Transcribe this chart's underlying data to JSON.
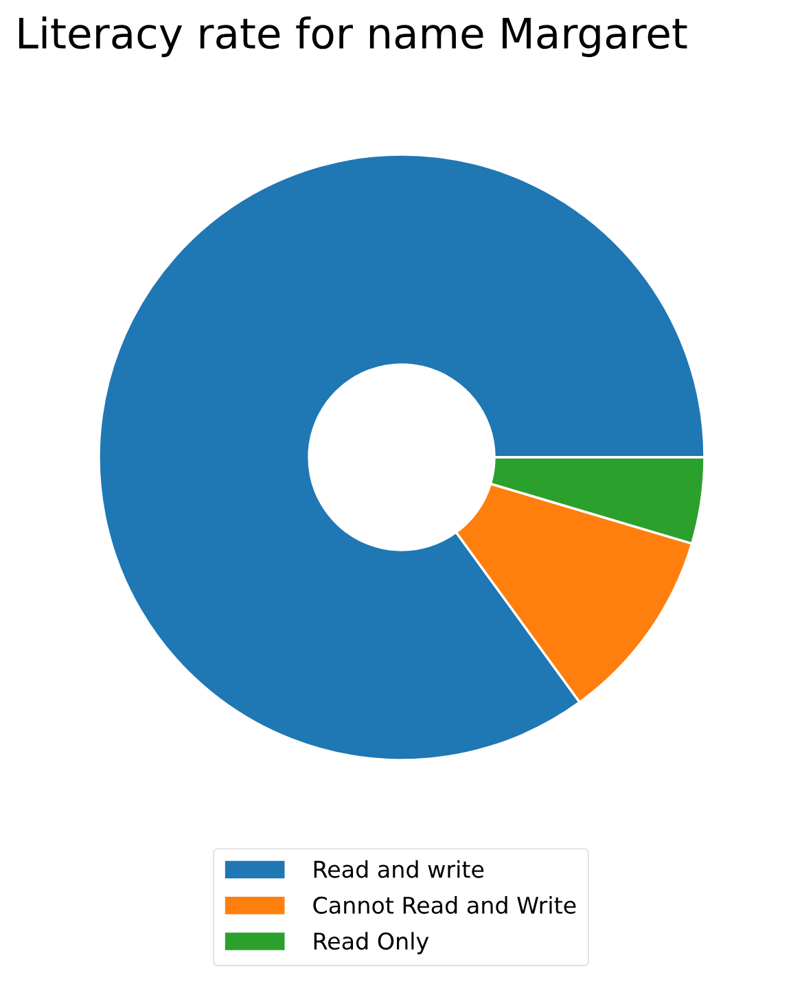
{
  "chart_data": {
    "type": "donut",
    "title": "Literacy rate for name Margaret",
    "categories": [
      "Read and write",
      "Cannot Read and Write",
      "Read Only"
    ],
    "values": [
      85.0,
      10.4,
      4.6
    ],
    "colors": [
      "#1f77b4",
      "#ff7f0e",
      "#2ca02c"
    ],
    "legend": "bottom"
  }
}
